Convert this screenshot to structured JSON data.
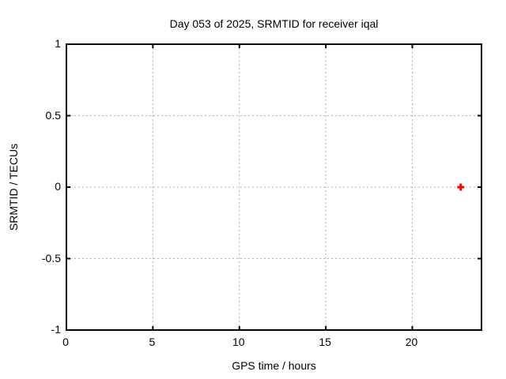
{
  "window": {
    "background": "#ffffff"
  },
  "chart_data": {
    "type": "scatter",
    "title": "Day 053 of 2025, SRMTID for receiver iqal",
    "xlabel": "GPS time / hours",
    "ylabel": "SRMTID / TECUs",
    "xlim": [
      0,
      24
    ],
    "ylim": [
      -1,
      1
    ],
    "x_ticks": [
      "0",
      "5",
      "10",
      "15",
      "20"
    ],
    "y_ticks": [
      "1",
      "0.5",
      "0",
      "-0.5",
      "-1"
    ],
    "grid": true,
    "legend_position": "none",
    "colors": {
      "marker": "#ff0000",
      "grid": "#b0b0b0",
      "axis": "#000000",
      "text": "#000000"
    },
    "series": [
      {
        "name": "SRMTID",
        "marker": "plus",
        "color": "#ff0000",
        "points": [
          {
            "x": 22.8,
            "y": 0.0
          }
        ]
      }
    ]
  }
}
